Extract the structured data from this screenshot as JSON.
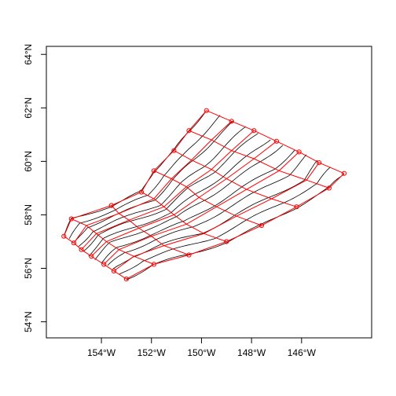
{
  "chart_data": {
    "type": "line",
    "title": "",
    "xlabel": "",
    "ylabel": "",
    "xlim": [
      -156.2,
      -143.2
    ],
    "ylim": [
      53.4,
      64.3
    ],
    "x_ticks": [
      -154,
      -152,
      -150,
      -148,
      -146
    ],
    "x_tick_labels": [
      "154°W",
      "152°W",
      "150°W",
      "148°W",
      "146°W"
    ],
    "y_ticks": [
      54,
      56,
      58,
      60,
      62,
      64
    ],
    "y_tick_labels": [
      "54°N",
      "56°N",
      "58°N",
      "60°N",
      "62°N",
      "64°N"
    ],
    "colors": {
      "grid": "#ff0000",
      "curves": "#000000",
      "axes": "#000000"
    },
    "grid_points": [
      [
        [
          -155.5,
          57.2
        ],
        [
          -155.2,
          57.85
        ],
        [
          -153.6,
          58.35
        ],
        [
          -152.4,
          58.85
        ],
        [
          -151.9,
          59.65
        ],
        [
          -151.1,
          60.4
        ],
        [
          -150.5,
          61.15
        ],
        [
          -149.8,
          61.9
        ]
      ],
      [
        [
          -155.1,
          56.95
        ],
        [
          -154.6,
          57.6
        ],
        [
          -153.3,
          58.05
        ],
        [
          -151.9,
          58.6
        ],
        [
          -151.2,
          59.35
        ],
        [
          -150.4,
          60.05
        ],
        [
          -149.6,
          60.8
        ],
        [
          -148.8,
          61.5
        ]
      ],
      [
        [
          -154.8,
          56.7
        ],
        [
          -154.2,
          57.3
        ],
        [
          -152.9,
          57.8
        ],
        [
          -151.5,
          58.3
        ],
        [
          -150.6,
          59.05
        ],
        [
          -149.6,
          59.7
        ],
        [
          -148.8,
          60.4
        ],
        [
          -147.9,
          61.15
        ]
      ],
      [
        [
          -154.4,
          56.45
        ],
        [
          -153.8,
          57.0
        ],
        [
          -152.5,
          57.5
        ],
        [
          -151.1,
          58.0
        ],
        [
          -150.1,
          58.65
        ],
        [
          -149.0,
          59.35
        ],
        [
          -147.9,
          60.1
        ],
        [
          -147.0,
          60.75
        ]
      ],
      [
        [
          -153.9,
          56.15
        ],
        [
          -153.3,
          56.7
        ],
        [
          -152.0,
          57.2
        ],
        [
          -150.6,
          57.65
        ],
        [
          -149.4,
          58.3
        ],
        [
          -148.2,
          58.95
        ],
        [
          -146.9,
          59.65
        ],
        [
          -146.1,
          60.35
        ]
      ],
      [
        [
          -153.5,
          55.9
        ],
        [
          -152.7,
          56.45
        ],
        [
          -151.5,
          56.85
        ],
        [
          -149.9,
          57.3
        ],
        [
          -148.6,
          57.95
        ],
        [
          -147.2,
          58.6
        ],
        [
          -145.8,
          59.3
        ],
        [
          -145.3,
          59.95
        ]
      ],
      [
        [
          -153.0,
          55.6
        ],
        [
          -151.9,
          56.15
        ],
        [
          -150.5,
          56.5
        ],
        [
          -149.0,
          57.0
        ],
        [
          -147.6,
          57.6
        ],
        [
          -146.2,
          58.3
        ],
        [
          -144.9,
          59.0
        ],
        [
          -144.3,
          59.55
        ]
      ]
    ]
  }
}
